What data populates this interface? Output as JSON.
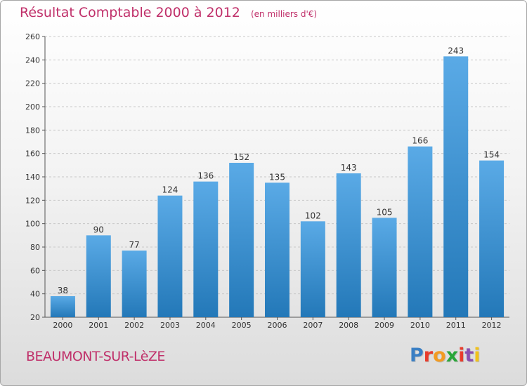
{
  "header": {
    "title": "Résultat Comptable 2000 à 2012",
    "unit": "(en milliers d'€)"
  },
  "footer": {
    "town": "BEAUMONT-SUR-LèZE",
    "logo": "Proxiti",
    "logo_colors": [
      "#3a7fc4",
      "#e83c2c",
      "#f29b22",
      "#2aa63a",
      "#e83c2c",
      "#8a4fb0",
      "#f2c21a"
    ]
  },
  "colors": {
    "bar_top": "#5aaae6",
    "bar_bottom": "#2378b8",
    "grid": "#c8c8c8",
    "axis": "#555555",
    "text": "#333333",
    "accent": "#c0306a"
  },
  "chart_data": {
    "type": "bar",
    "title": "Résultat Comptable 2000 à 2012",
    "subtitle": "(en milliers d'€)",
    "categories": [
      "2000",
      "2001",
      "2002",
      "2003",
      "2004",
      "2005",
      "2006",
      "2007",
      "2008",
      "2009",
      "2010",
      "2011",
      "2012"
    ],
    "values": [
      38,
      90,
      77,
      124,
      136,
      152,
      135,
      102,
      143,
      105,
      166,
      243,
      154
    ],
    "ylim": [
      20,
      260
    ],
    "yticks": [
      20,
      40,
      60,
      80,
      100,
      120,
      140,
      160,
      180,
      200,
      220,
      240,
      260
    ],
    "grid": true,
    "xlabel": "",
    "ylabel": ""
  }
}
